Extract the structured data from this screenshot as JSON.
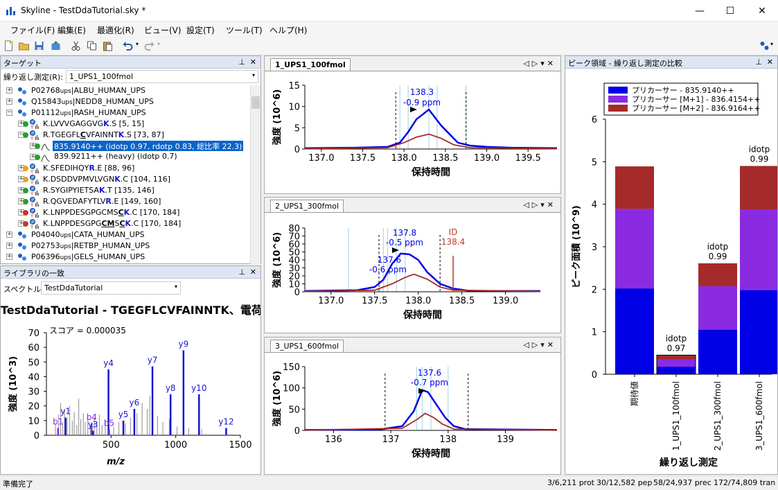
{
  "window": {
    "app_name": "Skyline",
    "title": "Skyline - TestDdaTutorial.sky *",
    "minimize": "—",
    "maximize": "☐",
    "close": "✕"
  },
  "menu": [
    "ファイル(F)",
    "編集(E)",
    "最適化(R)",
    "ビュー(V)",
    "設定(T)",
    "ツール(T)",
    "ヘルプ(H)"
  ],
  "targets_pane": {
    "title": "ターゲット",
    "replicate_label": "繰り返し測定(R):",
    "replicate_value": "1_UPS1_100fmol",
    "rows": [
      {
        "prefix": "P02768",
        "sub": "ups",
        "rest": "|ALBU_HUMAN_UPS"
      },
      {
        "prefix": "Q15843",
        "sub": "ups",
        "rest": "|NEDD8_HUMAN_UPS"
      },
      {
        "prefix": "P01112",
        "sub": "ups",
        "rest": "|RASH_HUMAN_UPS"
      },
      {
        "pre": "K.LVVVGAGGVG",
        "bold": "K",
        "post": ".S [5, 15]"
      },
      {
        "pre": "R.TGEGFL",
        "ul": "C",
        "mid": "VFAINNT",
        "bold": "K",
        "post": ".S [73, 87]"
      },
      {
        "text": "835.9140++ (idotp 0.97, rdotp 0.83, 総比率 22.3)"
      },
      {
        "text": "839.9211++ (heavy) (idotp 0.7)"
      },
      {
        "pre": "K.SFEDIHQY",
        "bold": "R",
        "post": ".E [88, 96]"
      },
      {
        "pre": "K.DSDDVPMVLVGN",
        "bold": "K",
        "post": ".C [104, 116]"
      },
      {
        "pre": "R.SYGIPYIETSA",
        "bold": "K",
        "post": ".T [135, 146]"
      },
      {
        "pre": "R.QGVEDAFYTLV",
        "bold": "R",
        "post": ".E [149, 160]"
      },
      {
        "pre": "K.LNPPDESGPGCMS",
        "ul": "C",
        "bold": "K",
        "post": ".C [170, 184]"
      },
      {
        "pre": "K.LNPPDESGPG",
        "ul": "CM",
        "mid": "S",
        "ul2": "C",
        "bold": "K",
        "post": ".C [170, 184]"
      },
      {
        "prefix": "P04040",
        "sub": "ups",
        "rest": "|CATA_HUMAN_UPS"
      },
      {
        "prefix": "P02753",
        "sub": "ups",
        "rest": "|RETBP_HUMAN_UPS"
      },
      {
        "prefix": "P06396",
        "sub": "ups",
        "rest": "|GELS_HUMAN_UPS"
      }
    ]
  },
  "library_pane": {
    "title": "ライブラリの一致",
    "spectrum_label": "スペクトル:",
    "spectrum_value": "TestDdaTutorial",
    "heading": "TestDdaTutorial - TGEGFLCVFAINNTK、電荷",
    "score": "スコア = 0.000035",
    "ylabel": "強度 (10^3)",
    "xlabel": "m/z"
  },
  "chrom_panes": [
    {
      "tab": "1_UPS1_100fmol",
      "ylabel": "強度 (10^6)",
      "xlabel": "保持時間",
      "annot1": "138.3",
      "annot2": "-0.9 ppm"
    },
    {
      "tab": "2_UPS1_300fmol",
      "ylabel": "強度 (10^6)",
      "xlabel": "保持時間",
      "annot1": "137.8",
      "annot2": "-0.5 ppm",
      "annot3": "137.6",
      "annot4": "-0.6 ppm",
      "id_label": "ID",
      "id_value": "138.4"
    },
    {
      "tab": "3_UPS1_600fmol",
      "ylabel": "強度 (10^6)",
      "xlabel": "保持時間",
      "annot1": "137.6",
      "annot2": "-0.7 ppm"
    }
  ],
  "peak_pane": {
    "title": "ピーク領域 - 繰り返し測定の比較",
    "ylabel": "ピーク面積 (10^9)",
    "xlabel": "繰り返し測定"
  },
  "colors": {
    "precursor": "#0000e6",
    "m1": "#8a2be2",
    "m2": "#a52a2a",
    "panel_header": "#dde6f2",
    "selected": "#0a64c8"
  },
  "chart_data": [
    {
      "type": "line",
      "title": "1_UPS1_100fmol",
      "xlabel": "保持時間",
      "ylabel": "強度 (10^6)",
      "xlim": [
        136.8,
        139.85
      ],
      "ylim": [
        0,
        15
      ],
      "xticks": [
        "137.0",
        "137.5",
        "138.0",
        "138.5",
        "139.0",
        "139.5"
      ],
      "yticks": [
        "0",
        "5",
        "10",
        "15"
      ],
      "series": [
        {
          "x": [
            136.8,
            137.4,
            137.8,
            137.95,
            138.05,
            138.15,
            138.25,
            138.3,
            138.35,
            138.45,
            138.55,
            138.65,
            138.8,
            139.0,
            139.3,
            139.85
          ],
          "values": [
            0.2,
            0.3,
            0.5,
            1.5,
            4.0,
            7.0,
            8.5,
            9.3,
            8.0,
            5.5,
            3.5,
            1.5,
            0.8,
            0.5,
            0.3,
            0.2
          ]
        },
        {
          "x": [
            136.8,
            137.8,
            138.0,
            138.15,
            138.3,
            138.45,
            138.6,
            138.8,
            139.85
          ],
          "values": [
            0.1,
            0.3,
            1.5,
            2.8,
            3.5,
            2.5,
            1.0,
            0.3,
            0.1
          ]
        }
      ]
    },
    {
      "type": "line",
      "title": "2_UPS1_300fmol",
      "xlabel": "保持時間",
      "ylabel": "強度 (10^6)",
      "xlim": [
        136.7,
        139.4
      ],
      "ylim": [
        0,
        80
      ],
      "xticks": [
        "137.0",
        "137.5",
        "138.0",
        "138.5",
        "139.0"
      ],
      "yticks": [
        "0",
        "10",
        "20",
        "30",
        "40",
        "50",
        "60",
        "70",
        "80"
      ],
      "series": [
        {
          "x": [
            136.7,
            137.3,
            137.5,
            137.6,
            137.7,
            137.8,
            137.9,
            138.0,
            138.1,
            138.25,
            138.4,
            138.6,
            139.4
          ],
          "values": [
            1,
            2,
            6,
            15,
            35,
            48,
            47,
            40,
            25,
            10,
            4,
            1,
            1
          ]
        },
        {
          "x": [
            136.7,
            137.5,
            137.7,
            137.85,
            137.95,
            138.1,
            138.25,
            138.4,
            139.4
          ],
          "values": [
            0.5,
            2,
            10,
            18,
            22,
            16,
            6,
            2,
            0.5
          ]
        }
      ]
    },
    {
      "type": "line",
      "title": "3_UPS1_600fmol",
      "xlabel": "保持時間",
      "ylabel": "強度 (10^6)",
      "xlim": [
        135.5,
        139.9
      ],
      "ylim": [
        0,
        150
      ],
      "xticks": [
        "136",
        "137",
        "138",
        "139"
      ],
      "yticks": [
        "0",
        "50",
        "100",
        "150"
      ],
      "series": [
        {
          "x": [
            135.5,
            136.8,
            137.2,
            137.4,
            137.55,
            137.65,
            137.8,
            137.95,
            138.1,
            138.3,
            139.9
          ],
          "values": [
            1,
            2,
            10,
            45,
            95,
            90,
            60,
            30,
            10,
            3,
            1
          ]
        },
        {
          "x": [
            135.5,
            137.2,
            137.45,
            137.6,
            137.75,
            137.9,
            138.1,
            139.9
          ],
          "values": [
            0.5,
            5,
            25,
            40,
            30,
            15,
            3,
            0.5
          ]
        }
      ]
    },
    {
      "type": "bar",
      "title": "",
      "xlabel": "繰り返し測定",
      "ylabel": "ピーク面積 (10^9)",
      "ylim": [
        0,
        6
      ],
      "yticks": [
        "0",
        "1",
        "2",
        "3",
        "4",
        "5",
        "6"
      ],
      "categories": [
        "期待値",
        "1_UPS1_100fmol",
        "2_UPS1_300fmol",
        "3_UPS1_600fmol"
      ],
      "legend": [
        "プリカーサー - 835.9140++",
        "プリカーサー [M+1] - 836.4154++",
        "プリカーサー [M+2] - 836.9164++"
      ],
      "series": [
        {
          "name": "プリカーサー - 835.9140++",
          "values": [
            2.02,
            0.18,
            1.05,
            1.98
          ]
        },
        {
          "name": "プリカーサー [M+1] - 836.4154++",
          "values": [
            1.87,
            0.17,
            1.02,
            1.9
          ]
        },
        {
          "name": "プリカーサー [M+2] - 836.9164++",
          "values": [
            1.0,
            0.1,
            0.54,
            1.02
          ]
        }
      ],
      "bar_labels": [
        [
          "",
          ""
        ],
        [
          "idotp",
          "0.97"
        ],
        [
          "idotp",
          "0.99"
        ],
        [
          "idotp",
          "0.99"
        ]
      ]
    },
    {
      "type": "bar",
      "title": "TestDdaTutorial - TGEGFLCVFAINNTK、電荷",
      "xlabel": "m/z",
      "ylabel": "強度 (10^3)",
      "xlim": [
        0,
        1500
      ],
      "ylim": [
        0,
        70
      ],
      "xticks": [
        "500",
        "1000",
        "1500"
      ],
      "yticks": [
        "0",
        "10",
        "20",
        "30",
        "40",
        "50",
        "60",
        "70"
      ],
      "peaks": [
        {
          "label": "b1",
          "x": 90,
          "y": 5,
          "kind": "b"
        },
        {
          "label": "y1",
          "x": 148,
          "y": 12,
          "kind": "y"
        },
        {
          "label": "b4",
          "x": 350,
          "y": 8,
          "kind": "b"
        },
        {
          "label": "y3",
          "x": 360,
          "y": 3,
          "kind": "y"
        },
        {
          "label": "y4",
          "x": 480,
          "y": 45,
          "kind": "y"
        },
        {
          "label": "b5",
          "x": 485,
          "y": 4,
          "kind": "b"
        },
        {
          "label": "y5",
          "x": 595,
          "y": 10,
          "kind": "y"
        },
        {
          "label": "y6",
          "x": 680,
          "y": 18,
          "kind": "y"
        },
        {
          "label": "y7",
          "x": 820,
          "y": 47,
          "kind": "y"
        },
        {
          "label": "y8",
          "x": 960,
          "y": 28,
          "kind": "y"
        },
        {
          "label": "y9",
          "x": 1060,
          "y": 58,
          "kind": "y"
        },
        {
          "label": "y10",
          "x": 1180,
          "y": 28,
          "kind": "y"
        },
        {
          "label": "y12",
          "x": 1390,
          "y": 5,
          "kind": "y"
        }
      ]
    }
  ],
  "status": {
    "left": "準備完了",
    "prot": "3/6,211 prot",
    "pep": "30/12,582 pep",
    "prec": "58/24,937 prec",
    "tran": "172/74,809 tran"
  }
}
